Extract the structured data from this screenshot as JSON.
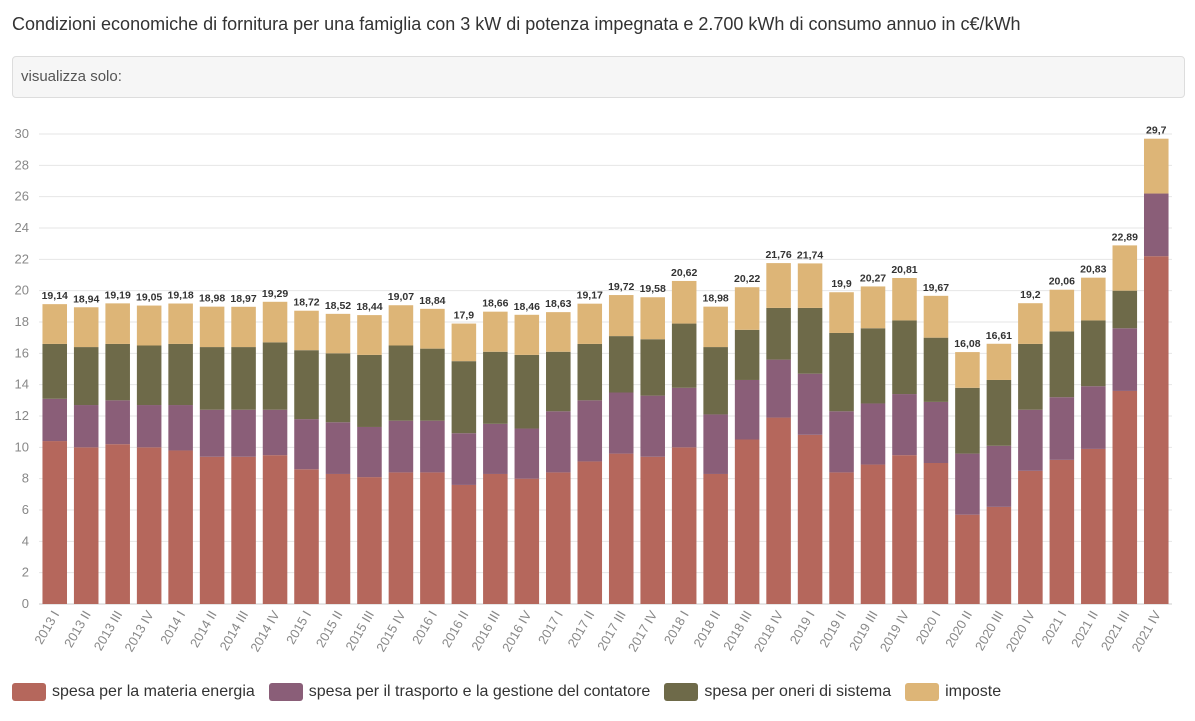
{
  "title": "Condizioni economiche di fornitura per una famiglia con 3 kW di potenza impegnata e 2.700 kWh di consumo annuo in c€/kWh",
  "filter": {
    "label": "visualizza solo:"
  },
  "colors": {
    "energia": "#b5675c",
    "trasporto": "#8a5e78",
    "oneri": "#6e6a49",
    "imposte": "#ddb577"
  },
  "legend": [
    {
      "key": "energia",
      "label": "spesa per la materia energia"
    },
    {
      "key": "trasporto",
      "label": "spesa per il trasporto e la gestione del contatore"
    },
    {
      "key": "oneri",
      "label": "spesa per oneri di sistema"
    },
    {
      "key": "imposte",
      "label": "imposte"
    }
  ],
  "chart_data": {
    "type": "bar",
    "stacked": true,
    "ylim": [
      0,
      30
    ],
    "yticks": [
      0,
      2,
      4,
      6,
      8,
      10,
      12,
      14,
      16,
      18,
      20,
      22,
      24,
      26,
      28,
      30
    ],
    "grid": true,
    "legend_position": "bottom",
    "categories": [
      "2013 I",
      "2013 II",
      "2013 III",
      "2013 IV",
      "2014 I",
      "2014 II",
      "2014 III",
      "2014 IV",
      "2015 I",
      "2015 II",
      "2015 III",
      "2015 IV",
      "2016 I",
      "2016 II",
      "2016 III",
      "2016 IV",
      "2017 I",
      "2017 II",
      "2017 III",
      "2017 IV",
      "2018 I",
      "2018 II",
      "2018 III",
      "2018 IV",
      "2019 I",
      "2019 II",
      "2019 III",
      "2019 IV",
      "2020 I",
      "2020 II",
      "2020 III",
      "2020 IV",
      "2021 I",
      "2021 II",
      "2021 III",
      "2021 IV"
    ],
    "totals": [
      "19,14",
      "18,94",
      "19,19",
      "19,05",
      "19,18",
      "18,98",
      "18,97",
      "19,29",
      "18,72",
      "18,52",
      "18,44",
      "19,07",
      "18,84",
      "17,9",
      "18,66",
      "18,46",
      "18,63",
      "19,17",
      "19,72",
      "19,58",
      "20,62",
      "18,98",
      "20,22",
      "21,76",
      "21,74",
      "19,9",
      "20,27",
      "20,81",
      "19,67",
      "16,08",
      "16,61",
      "19,2",
      "20,06",
      "20,83",
      "22,89",
      "29,7"
    ],
    "series": [
      {
        "name": "spesa per la materia energia",
        "key": "energia",
        "values": [
          10.4,
          10.0,
          10.2,
          10.0,
          9.8,
          9.4,
          9.4,
          9.5,
          8.6,
          8.3,
          8.1,
          8.4,
          8.4,
          7.6,
          8.3,
          8.0,
          8.4,
          9.1,
          9.6,
          9.4,
          10.0,
          8.3,
          10.5,
          11.9,
          10.8,
          8.4,
          8.9,
          9.5,
          9.0,
          5.7,
          6.2,
          8.5,
          9.2,
          9.9,
          13.6,
          22.2
        ]
      },
      {
        "name": "spesa per il trasporto e la gestione del contatore",
        "key": "trasporto",
        "values": [
          2.7,
          2.7,
          2.8,
          2.7,
          2.9,
          3.0,
          3.0,
          2.9,
          3.2,
          3.3,
          3.2,
          3.3,
          3.3,
          3.3,
          3.2,
          3.2,
          3.9,
          3.9,
          3.9,
          3.9,
          3.8,
          3.8,
          3.8,
          3.7,
          3.9,
          3.9,
          3.9,
          3.9,
          3.9,
          3.9,
          3.9,
          3.9,
          4.0,
          4.0,
          4.0,
          4.0
        ]
      },
      {
        "name": "spesa per oneri di sistema",
        "key": "oneri",
        "values": [
          3.5,
          3.7,
          3.6,
          3.8,
          3.9,
          4.0,
          4.0,
          4.3,
          4.4,
          4.4,
          4.6,
          4.8,
          4.6,
          4.6,
          4.6,
          4.7,
          3.8,
          3.6,
          3.6,
          3.6,
          4.1,
          4.3,
          3.2,
          3.3,
          4.2,
          5.0,
          4.8,
          4.7,
          4.1,
          4.2,
          4.2,
          4.2,
          4.2,
          4.2,
          2.4,
          0.0
        ]
      },
      {
        "name": "imposte",
        "key": "imposte",
        "values": [
          2.54,
          2.54,
          2.59,
          2.55,
          2.58,
          2.58,
          2.57,
          2.59,
          2.52,
          2.52,
          2.54,
          2.57,
          2.54,
          2.4,
          2.56,
          2.56,
          2.53,
          2.57,
          2.62,
          2.68,
          2.72,
          2.58,
          2.72,
          2.86,
          2.84,
          2.6,
          2.67,
          2.71,
          2.67,
          2.28,
          2.31,
          2.6,
          2.66,
          2.73,
          2.89,
          3.5
        ]
      }
    ]
  }
}
